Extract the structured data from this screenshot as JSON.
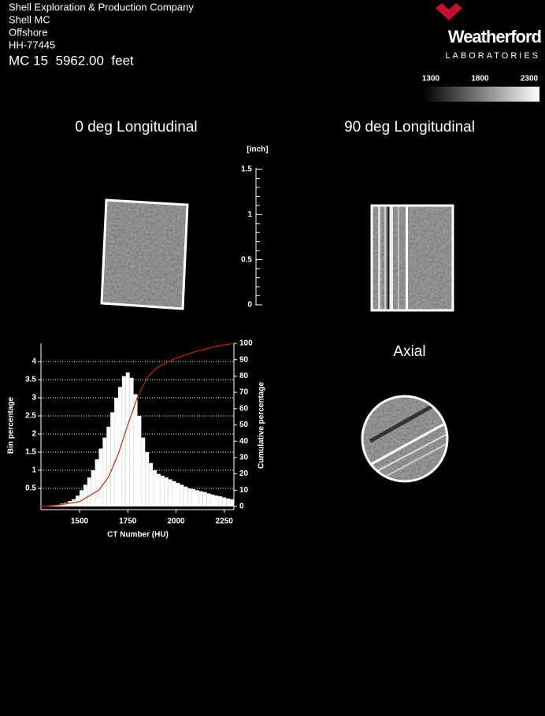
{
  "header": {
    "lines": [
      "Shell Exploration & Production Company",
      "Shell MC",
      "Offshore",
      "HH-77445"
    ],
    "depth": "MC 15  5962.00  feet"
  },
  "logo": {
    "name": "Weatherford",
    "sub": "LABORATORIES"
  },
  "color_scale": {
    "ticks": [
      1300,
      1800,
      2300
    ],
    "range": [
      1300,
      2300
    ]
  },
  "views": {
    "longitudinal_0": "0 deg Longitudinal",
    "longitudinal_90": "90 deg Longitudinal",
    "axial": "Axial"
  },
  "ruler": {
    "unit": "[inch]",
    "ticks": [
      0,
      0.5,
      1,
      1.5
    ],
    "range": [
      0,
      1.5
    ]
  },
  "chart_data": {
    "type": "histogram",
    "xlabel": "CT Number (HU)",
    "ylabel": "Bin percentage",
    "y2label": "Cumulative percentage",
    "bins": [
      1300,
      1320,
      1340,
      1360,
      1380,
      1400,
      1420,
      1440,
      1460,
      1480,
      1500,
      1520,
      1540,
      1560,
      1580,
      1600,
      1620,
      1640,
      1660,
      1680,
      1700,
      1720,
      1740,
      1760,
      1780,
      1800,
      1820,
      1840,
      1860,
      1880,
      1900,
      1920,
      1940,
      1960,
      1980,
      2000,
      2020,
      2040,
      2060,
      2080,
      2100,
      2120,
      2140,
      2160,
      2180,
      2200,
      2220,
      2240,
      2260,
      2280,
      2300
    ],
    "values": [
      0,
      0,
      0.02,
      0.03,
      0.05,
      0.08,
      0.1,
      0.15,
      0.2,
      0.3,
      0.45,
      0.6,
      0.8,
      1.0,
      1.3,
      1.6,
      1.9,
      2.2,
      2.6,
      3.0,
      3.3,
      3.6,
      3.7,
      3.55,
      3.1,
      2.5,
      1.9,
      1.5,
      1.2,
      1.0,
      0.9,
      0.85,
      0.8,
      0.75,
      0.7,
      0.65,
      0.6,
      0.55,
      0.5,
      0.48,
      0.45,
      0.42,
      0.4,
      0.36,
      0.33,
      0.3,
      0.28,
      0.25,
      0.22,
      0.2
    ],
    "color": "#ffffff",
    "cumulative": {
      "color": "#cc2200",
      "axis": "y2",
      "x": [
        1300,
        1400,
        1500,
        1600,
        1650,
        1700,
        1750,
        1800,
        1850,
        1900,
        2000,
        2100,
        2200,
        2300
      ],
      "values": [
        0,
        1,
        3,
        10,
        18,
        32,
        50,
        67,
        79,
        85,
        91,
        95,
        98,
        100
      ]
    },
    "xlim": [
      1300,
      2300
    ],
    "xticks": [
      1500,
      1750,
      2000,
      2250
    ],
    "ylim": [
      0,
      4.5
    ],
    "yticks": [
      0.5,
      1,
      1.5,
      2,
      2.5,
      3,
      3.5,
      4
    ],
    "y2lim": [
      0,
      100
    ],
    "y2ticks": [
      0,
      10,
      20,
      30,
      40,
      50,
      60,
      70,
      80,
      90,
      100
    ],
    "grid": true
  }
}
